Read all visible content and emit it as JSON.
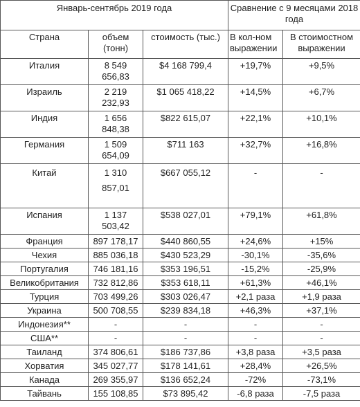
{
  "header": {
    "period": "Январь-сентябрь 2019 года",
    "comparison": "Сравнение с 9 месяцами 2018 года"
  },
  "table": {
    "columns": [
      "Страна",
      "объем (тонн)",
      "стоимость (тыс.)",
      "В кол-ном выражении",
      "В стоимостном выражении"
    ],
    "rows": [
      [
        "Италия",
        "8 549 656,83",
        "$4 168 799,4",
        "+19,7%",
        "+9,5%"
      ],
      [
        "Израиль",
        "2 219 232,93",
        "$1 065 418,22",
        "+14,5%",
        "+6,7%"
      ],
      [
        "Индия",
        "1 656 848,38",
        "$822 615,07",
        "+22,1%",
        "+10,1%"
      ],
      [
        "Германия",
        "1 509 654,09",
        "$711 163",
        "+32,7%",
        "+16,8%"
      ],
      [
        "Китай",
        "1 310 857,01",
        "$667 055,12",
        "-",
        "-"
      ],
      [
        "Испания",
        "1 137 503,42",
        "$538 027,01",
        "+79,1%",
        "+61,8%"
      ],
      [
        "Франция",
        "897 178,17",
        "$440 860,55",
        "+24,6%",
        "+15%"
      ],
      [
        "Чехия",
        "885 036,18",
        "$430 523,29",
        "-30,1%",
        "-35,6%"
      ],
      [
        "Португалия",
        "746 181,16",
        "$353 196,51",
        "-15,2%",
        "-25,9%"
      ],
      [
        "Великобритания",
        "732 812,86",
        "$353 618,11",
        "+61,3%",
        "+46,1%"
      ],
      [
        "Турция",
        "703 499,26",
        "$303 026,47",
        "+2,1 раза",
        "+1,9 раза"
      ],
      [
        "Украина",
        "500 708,55",
        "$239 834,18",
        "+46,3%",
        "+37,1%"
      ],
      [
        "Индонезия**",
        "-",
        "-",
        "-",
        "-"
      ],
      [
        "США**",
        "-",
        "-",
        "-",
        "-"
      ],
      [
        "Таиланд",
        "374 806,61",
        "$186 737,86",
        "+3,8 раза",
        "+3,5 раза"
      ],
      [
        "Хорватия",
        "345 027,77",
        "$178 141,61",
        "+28,4%",
        "+26,5%"
      ],
      [
        "Канада",
        "269 355,97",
        "$136 652,24",
        "-72%",
        "-73,1%"
      ],
      [
        "Тайвань",
        "155 108,85",
        "$73 895,42",
        "-6,8 раза",
        "-7,5 раза"
      ]
    ]
  }
}
